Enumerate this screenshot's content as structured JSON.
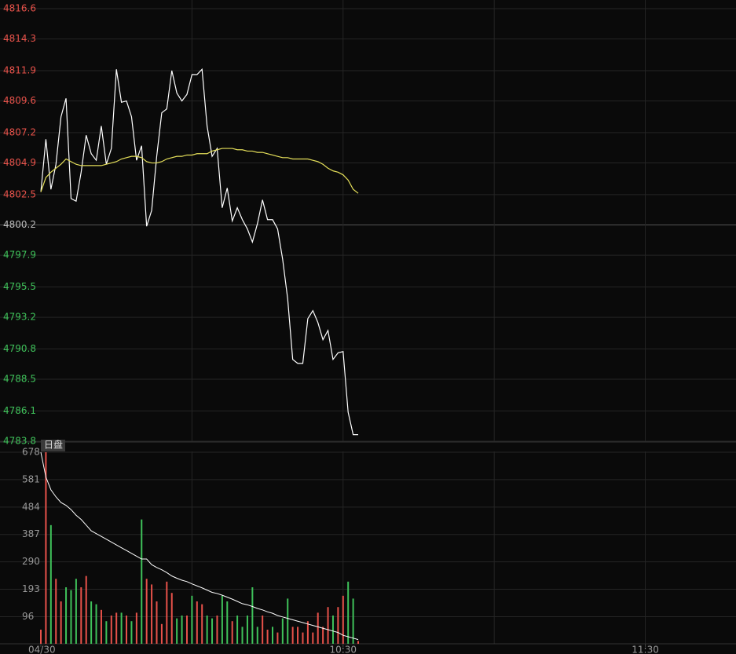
{
  "chart_data": [
    {
      "type": "line",
      "panel": "price",
      "xlim": [
        0,
        138
      ],
      "xgrid": [
        30,
        60,
        90,
        120
      ],
      "ylim": [
        4783.8,
        4816.6
      ],
      "yticks": [
        4816.6,
        4814.3,
        4811.9,
        4809.6,
        4807.2,
        4804.9,
        4802.5,
        4800.2,
        4797.9,
        4795.5,
        4793.2,
        4790.8,
        4788.5,
        4786.1,
        4783.8
      ],
      "prev_close": 4800.2,
      "up_color": "#e8524a",
      "down_color": "#3fc25a",
      "flat_color": "#bbbbbb",
      "grid": true,
      "series": [
        {
          "color": "#ffffff",
          "values": [
            4802.7,
            4806.7,
            4802.9,
            4804.8,
            4808.4,
            4809.8,
            4802.2,
            4802.0,
            4804.2,
            4807.0,
            4805.6,
            4805.1,
            4807.7,
            4804.8,
            4806.0,
            4812.0,
            4809.5,
            4809.6,
            4808.4,
            4805.1,
            4806.2,
            4800.1,
            4801.3,
            4805.4,
            4808.7,
            4809.0,
            4811.9,
            4810.2,
            4809.6,
            4810.1,
            4811.6,
            4811.6,
            4812.0,
            4807.7,
            4805.4,
            4806.0,
            4801.5,
            4803.0,
            4800.5,
            4801.5,
            4800.6,
            4799.9,
            4798.9,
            4800.3,
            4802.1,
            4800.6,
            4800.6,
            4799.9,
            4797.6,
            4794.6,
            4790.0,
            4789.7,
            4789.7,
            4793.1,
            4793.7,
            4792.8,
            4791.5,
            4792.2,
            4790.0,
            4790.5,
            4790.6,
            4786.0,
            4784.3,
            4784.3
          ]
        },
        {
          "color": "#e6e05a",
          "values": [
            4802.7,
            4803.8,
            4804.2,
            4804.5,
            4804.8,
            4805.2,
            4805.0,
            4804.8,
            4804.7,
            4804.7,
            4804.7,
            4804.7,
            4804.7,
            4804.8,
            4804.9,
            4805.0,
            4805.2,
            4805.3,
            4805.4,
            4805.4,
            4805.3,
            4805.0,
            4804.9,
            4804.9,
            4805.0,
            4805.2,
            4805.3,
            4805.4,
            4805.4,
            4805.5,
            4805.5,
            4805.6,
            4805.6,
            4805.6,
            4805.8,
            4805.9,
            4806.0,
            4806.0,
            4806.0,
            4805.9,
            4805.9,
            4805.8,
            4805.8,
            4805.7,
            4805.7,
            4805.6,
            4805.5,
            4805.4,
            4805.3,
            4805.3,
            4805.2,
            4805.2,
            4805.2,
            4805.2,
            4805.1,
            4805.0,
            4804.8,
            4804.5,
            4804.3,
            4804.2,
            4804.0,
            4803.6,
            4802.9,
            4802.6
          ]
        }
      ]
    },
    {
      "type": "bar",
      "panel": "volume",
      "label": "日盘",
      "xlim": [
        0,
        138
      ],
      "xgrid": [
        30,
        60,
        90,
        120
      ],
      "xticks": [
        {
          "value": 0,
          "label": "04/30"
        },
        {
          "value": 60,
          "label": "10:30"
        },
        {
          "value": 120,
          "label": "11:30"
        }
      ],
      "ylim": [
        0,
        678
      ],
      "yticks": [
        678,
        581,
        484,
        387,
        290,
        193,
        96
      ],
      "grid": true,
      "values": [
        50,
        678,
        420,
        230,
        150,
        200,
        190,
        230,
        200,
        240,
        150,
        140,
        120,
        80,
        100,
        110,
        110,
        100,
        80,
        110,
        440,
        230,
        210,
        150,
        70,
        220,
        180,
        90,
        100,
        100,
        170,
        150,
        140,
        100,
        90,
        100,
        170,
        150,
        80,
        100,
        60,
        100,
        200,
        60,
        100,
        50,
        60,
        40,
        90,
        160,
        60,
        60,
        40,
        80,
        40,
        110,
        60,
        130,
        100,
        130,
        170,
        220,
        160,
        10
      ],
      "colors": [
        "#e8524a",
        "#e8524a",
        "#3fc25a",
        "#e8524a",
        "#e8524a",
        "#3fc25a",
        "#3fc25a",
        "#3fc25a",
        "#e8524a",
        "#e8524a",
        "#3fc25a",
        "#3fc25a",
        "#e8524a",
        "#3fc25a",
        "#e8524a",
        "#e8524a",
        "#3fc25a",
        "#e8524a",
        "#3fc25a",
        "#e8524a",
        "#3fc25a",
        "#e8524a",
        "#e8524a",
        "#e8524a",
        "#e8524a",
        "#e8524a",
        "#e8524a",
        "#3fc25a",
        "#3fc25a",
        "#e8524a",
        "#3fc25a",
        "#e8524a",
        "#e8524a",
        "#3fc25a",
        "#3fc25a",
        "#e8524a",
        "#3fc25a",
        "#3fc25a",
        "#e8524a",
        "#3fc25a",
        "#3fc25a",
        "#3fc25a",
        "#3fc25a",
        "#3fc25a",
        "#e8524a",
        "#e8524a",
        "#3fc25a",
        "#e8524a",
        "#3fc25a",
        "#3fc25a",
        "#e8524a",
        "#e8524a",
        "#e8524a",
        "#e8524a",
        "#e8524a",
        "#e8524a",
        "#e8524a",
        "#e8524a",
        "#3fc25a",
        "#e8524a",
        "#e8524a",
        "#3fc25a",
        "#3fc25a",
        "#e8524a"
      ],
      "avg": {
        "color": "#ffffff",
        "values": [
          678,
          590,
          545,
          520,
          500,
          490,
          475,
          455,
          440,
          420,
          400,
          390,
          380,
          370,
          360,
          350,
          340,
          330,
          320,
          310,
          300,
          300,
          280,
          270,
          262,
          252,
          240,
          232,
          225,
          220,
          212,
          205,
          198,
          190,
          182,
          178,
          172,
          165,
          158,
          150,
          142,
          138,
          132,
          125,
          120,
          113,
          108,
          100,
          95,
          90,
          85,
          80,
          75,
          70,
          65,
          60,
          55,
          50,
          45,
          40,
          30,
          25,
          20,
          15
        ]
      }
    }
  ]
}
